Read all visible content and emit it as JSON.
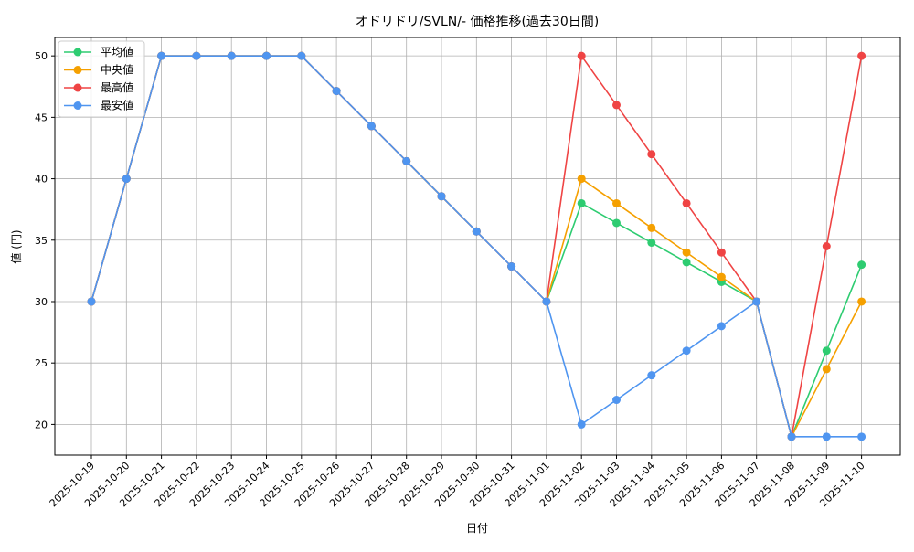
{
  "chart_data": {
    "type": "line",
    "title": "オドリドリ/SVLN/- 価格推移(過去30日間)",
    "xlabel": "日付",
    "ylabel": "値 (円)",
    "categories": [
      "2025-10-19",
      "2025-10-20",
      "2025-10-21",
      "2025-10-22",
      "2025-10-23",
      "2025-10-24",
      "2025-10-25",
      "2025-10-26",
      "2025-10-27",
      "2025-10-28",
      "2025-10-29",
      "2025-10-30",
      "2025-10-31",
      "2025-11-01",
      "2025-11-02",
      "2025-11-03",
      "2025-11-04",
      "2025-11-05",
      "2025-11-06",
      "2025-11-07",
      "2025-11-08",
      "2025-11-09",
      "2025-11-10"
    ],
    "ylim": [
      17.5,
      51.5
    ],
    "yticks": [
      20,
      25,
      30,
      35,
      40,
      45,
      50
    ],
    "grid": true,
    "legend_position": "top-left",
    "series": [
      {
        "name": "平均値",
        "color": "#2ecc71",
        "values": [
          30,
          40,
          50,
          50,
          50,
          50,
          50,
          47.14,
          44.29,
          41.43,
          38.57,
          35.71,
          32.86,
          30,
          38,
          36.4,
          34.8,
          33.2,
          31.6,
          30,
          19,
          26,
          33
        ]
      },
      {
        "name": "中央値",
        "color": "#f5a000",
        "values": [
          30,
          40,
          50,
          50,
          50,
          50,
          50,
          47.14,
          44.29,
          41.43,
          38.57,
          35.71,
          32.86,
          30,
          40,
          38,
          36,
          34,
          32,
          30,
          19,
          24.5,
          30
        ]
      },
      {
        "name": "最高値",
        "color": "#ef4444",
        "values": [
          30,
          40,
          50,
          50,
          50,
          50,
          50,
          47.14,
          44.29,
          41.43,
          38.57,
          35.71,
          32.86,
          30,
          50,
          46,
          42,
          38,
          34,
          30,
          19,
          34.5,
          50
        ]
      },
      {
        "name": "最安値",
        "color": "#4f95f0",
        "values": [
          30,
          40,
          50,
          50,
          50,
          50,
          50,
          47.14,
          44.29,
          41.43,
          38.57,
          35.71,
          32.86,
          30,
          20,
          22,
          24,
          26,
          28,
          30,
          19,
          19,
          19
        ]
      }
    ]
  }
}
